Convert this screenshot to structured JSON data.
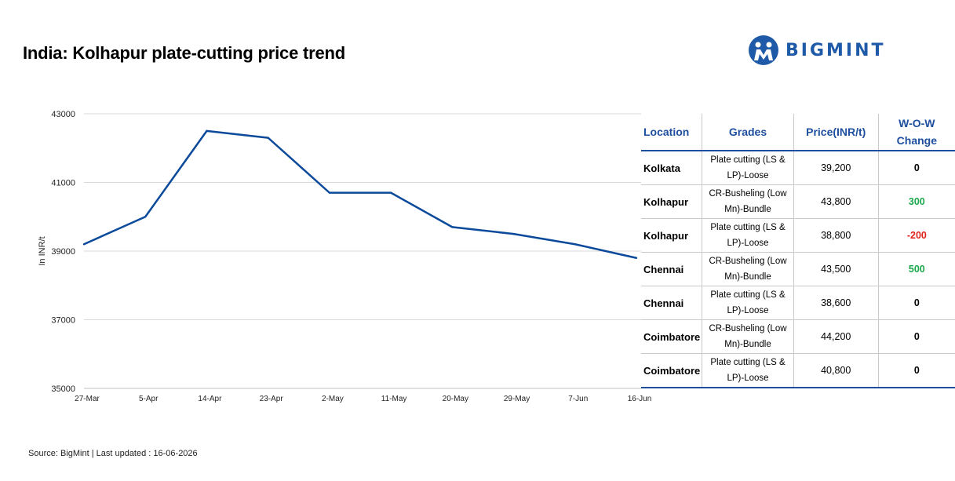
{
  "page": {
    "title": "India: Kolhapur plate-cutting price trend",
    "logo_text": "BIGMINT",
    "source": "Source: BigMint | Last updated : 16-06-2026"
  },
  "colors": {
    "series": "#0b4a9b",
    "brand": "#1e5aa8",
    "positive": "#1aa84b",
    "negative": "#e0201b"
  },
  "chart_data": {
    "type": "line",
    "title": "",
    "ylabel": "In INR/t",
    "xlabel": "",
    "ylim": [
      35000,
      43000
    ],
    "yticks": [
      35000,
      37000,
      39000,
      41000,
      43000
    ],
    "grid": true,
    "categories": [
      "27-Mar",
      "5-Apr",
      "14-Apr",
      "23-Apr",
      "2-May",
      "11-May",
      "20-May",
      "29-May",
      "7-Jun",
      "16-Jun"
    ],
    "values": [
      39200,
      40000,
      42500,
      42300,
      40700,
      40700,
      39700,
      39500,
      39200,
      38800
    ]
  },
  "table": {
    "headers": [
      "Location",
      "Grades",
      "Price(INR/t)",
      "W-O-W Change"
    ],
    "rows": [
      {
        "location": "Kolkata",
        "grade": "Plate cutting (LS & LP)-Loose",
        "price": "39,200",
        "change": "0",
        "trend": "flat"
      },
      {
        "location": "Kolhapur",
        "grade": "CR-Busheling (Low Mn)-Bundle",
        "price": "43,800",
        "change": "300",
        "trend": "up"
      },
      {
        "location": "Kolhapur",
        "grade": "Plate cutting (LS & LP)-Loose",
        "price": "38,800",
        "change": "-200",
        "trend": "down"
      },
      {
        "location": "Chennai",
        "grade": "CR-Busheling (Low Mn)-Bundle",
        "price": "43,500",
        "change": "500",
        "trend": "up"
      },
      {
        "location": "Chennai",
        "grade": "Plate cutting (LS & LP)-Loose",
        "price": "38,600",
        "change": "0",
        "trend": "flat"
      },
      {
        "location": "Coimbatore",
        "grade": "CR-Busheling (Low Mn)-Bundle",
        "price": "44,200",
        "change": "0",
        "trend": "flat"
      },
      {
        "location": "Coimbatore",
        "grade": "Plate cutting (LS & LP)-Loose",
        "price": "40,800",
        "change": "0",
        "trend": "flat"
      }
    ]
  }
}
